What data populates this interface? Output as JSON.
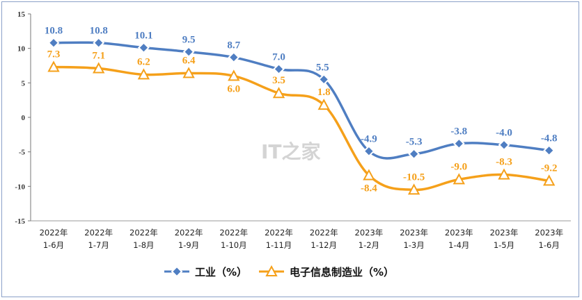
{
  "chart_data": {
    "type": "line",
    "categories": [
      [
        "2022年",
        "1-6月"
      ],
      [
        "2022年",
        "1-7月"
      ],
      [
        "2022年",
        "1-8月"
      ],
      [
        "2022年",
        "1-9月"
      ],
      [
        "2022年",
        "1-10月"
      ],
      [
        "2022年",
        "1-11月"
      ],
      [
        "2022年",
        "1-12月"
      ],
      [
        "2023年",
        "1-2月"
      ],
      [
        "2023年",
        "1-3月"
      ],
      [
        "2023年",
        "1-4月"
      ],
      [
        "2023年",
        "1-5月"
      ],
      [
        "2023年",
        "1-6月"
      ]
    ],
    "series": [
      {
        "name": "工业（%）",
        "color": "#4f7ec2",
        "marker": "diamond",
        "values": [
          10.8,
          10.8,
          10.1,
          9.5,
          8.7,
          7.0,
          5.5,
          -4.9,
          -5.3,
          -3.8,
          -4.0,
          -4.8
        ],
        "labels": [
          "10.8",
          "10.8",
          "10.1",
          "9.5",
          "8.7",
          "7.0",
          "5.5",
          "-4.9",
          "-5.3",
          "-3.8",
          "-4.0",
          "-4.8"
        ]
      },
      {
        "name": "电子信息制造业（%）",
        "color": "#f5a01a",
        "marker": "triangle",
        "values": [
          7.3,
          7.1,
          6.2,
          6.4,
          6.0,
          3.5,
          1.8,
          -8.4,
          -10.5,
          -9.0,
          -8.3,
          -9.2
        ],
        "labels": [
          "7.3",
          "7.1",
          "6.2",
          "6.4",
          "6.0",
          "3.5",
          "1.8",
          "-8.4",
          "-10.5",
          "-9.0",
          "-8.3",
          "-9.2"
        ]
      }
    ],
    "yticks": [
      15,
      10,
      5,
      0,
      -5,
      -10,
      -15
    ],
    "ylim": [
      -15,
      15
    ],
    "legend": "bottom",
    "grid": false
  },
  "watermark": "IT之家"
}
